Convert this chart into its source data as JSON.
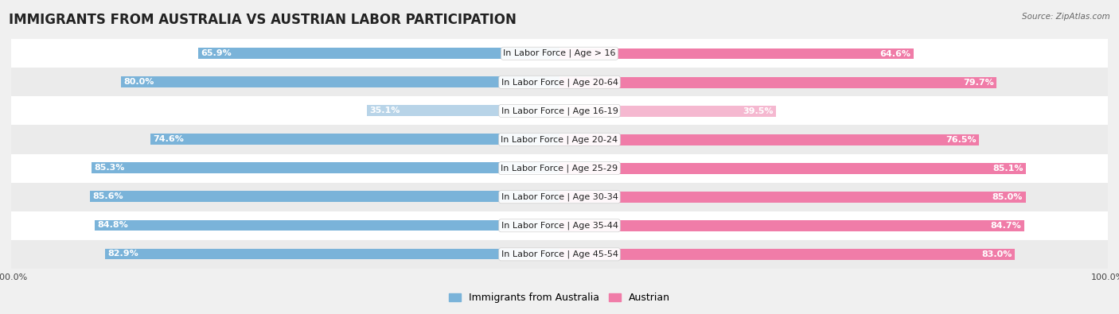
{
  "title": "IMMIGRANTS FROM AUSTRALIA VS AUSTRIAN LABOR PARTICIPATION",
  "source": "Source: ZipAtlas.com",
  "categories": [
    "In Labor Force | Age > 16",
    "In Labor Force | Age 20-64",
    "In Labor Force | Age 16-19",
    "In Labor Force | Age 20-24",
    "In Labor Force | Age 25-29",
    "In Labor Force | Age 30-34",
    "In Labor Force | Age 35-44",
    "In Labor Force | Age 45-54"
  ],
  "australia_values": [
    65.9,
    80.0,
    35.1,
    74.6,
    85.3,
    85.6,
    84.8,
    82.9
  ],
  "austrian_values": [
    64.6,
    79.7,
    39.5,
    76.5,
    85.1,
    85.0,
    84.7,
    83.0
  ],
  "australia_color": "#7ab3d9",
  "australia_color_light": "#b8d4e8",
  "austrian_color": "#f07ca8",
  "austrian_color_light": "#f5b8d0",
  "max_value": 100.0,
  "bg_color": "#f0f0f0",
  "row_bg_colors": [
    "#ffffff",
    "#ebebeb"
  ],
  "title_fontsize": 12,
  "label_fontsize": 8,
  "value_fontsize": 8,
  "legend_fontsize": 9,
  "axis_label_fontsize": 8
}
